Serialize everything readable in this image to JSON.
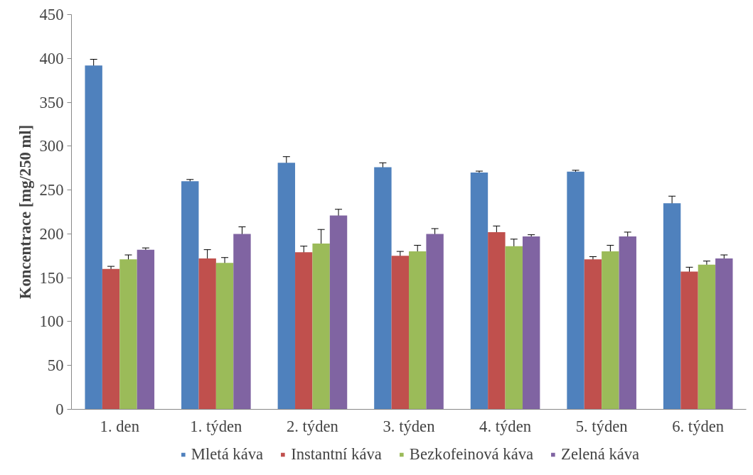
{
  "chart_data": {
    "type": "bar",
    "ylabel": "Koncentrace [mg/250 ml]",
    "categories": [
      "1. den",
      "1. týden",
      "2. týden",
      "3. týden",
      "4. týden",
      "5. týden",
      "6. týden"
    ],
    "ylim": [
      0,
      450
    ],
    "yticks": [
      0,
      50,
      100,
      150,
      200,
      250,
      300,
      350,
      400,
      450
    ],
    "grid": false,
    "legend": "bottom",
    "series": [
      {
        "name": "Mletá káva",
        "color": "#4f81bd",
        "values": [
          392,
          260,
          281,
          276,
          270,
          271,
          235
        ],
        "errors": [
          7,
          2,
          7,
          5,
          1.5,
          1.5,
          8
        ]
      },
      {
        "name": "Instantní káva",
        "color": "#c0504d",
        "values": [
          160,
          172,
          179,
          175,
          202,
          171,
          157
        ],
        "errors": [
          3,
          10,
          7,
          5,
          7,
          3,
          5
        ]
      },
      {
        "name": "Bezkofeinová káva",
        "color": "#9bbb59",
        "values": [
          171,
          167,
          189,
          180,
          186,
          180,
          165
        ],
        "errors": [
          5,
          6,
          16,
          7,
          8,
          7,
          4
        ]
      },
      {
        "name": "Zelená káva",
        "color": "#8064a2",
        "values": [
          182,
          200,
          221,
          200,
          197,
          197,
          172
        ],
        "errors": [
          2,
          8,
          7,
          6,
          2,
          5,
          4
        ]
      }
    ]
  }
}
